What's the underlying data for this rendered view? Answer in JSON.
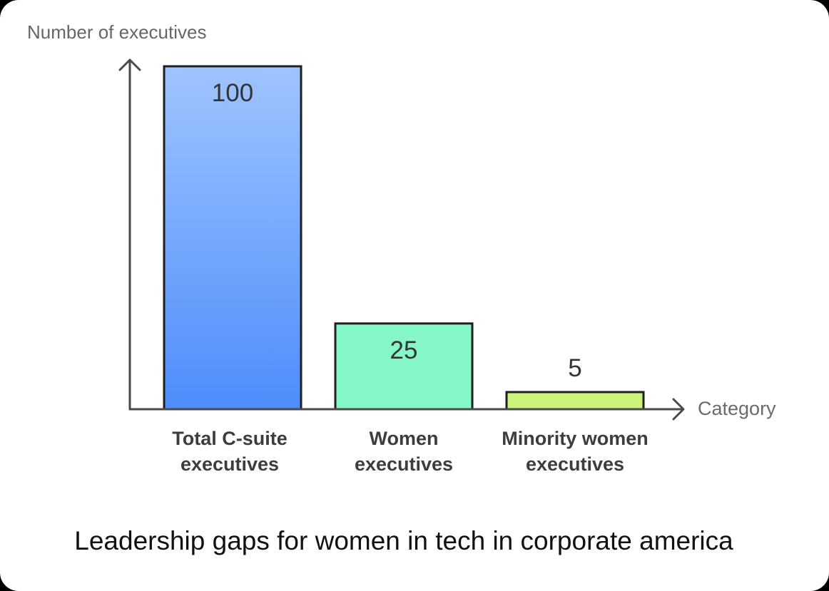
{
  "chart_data": {
    "type": "bar",
    "title": "Leadership gaps for women in tech in corporate america",
    "xlabel": "Category",
    "ylabel": "Number of executives",
    "ylim": [
      0,
      100
    ],
    "grid": false,
    "legend": "none",
    "categories": [
      [
        "Total C-suite",
        "executives"
      ],
      [
        "Women",
        "executives"
      ],
      [
        "Minority women",
        "executives"
      ]
    ],
    "values": [
      100,
      25,
      5
    ],
    "value_labels": [
      "100",
      "25",
      "5"
    ],
    "colors": [
      {
        "top": "#9fc4ff",
        "bottom": "#4d8dfb"
      },
      {
        "top": "#86f8c8",
        "bottom": "#86f8c8"
      },
      {
        "top": "#cbf27a",
        "bottom": "#cbf27a"
      }
    ],
    "axis_color": "#4a4a4a",
    "bar_border_color": "#1f1f1f"
  }
}
